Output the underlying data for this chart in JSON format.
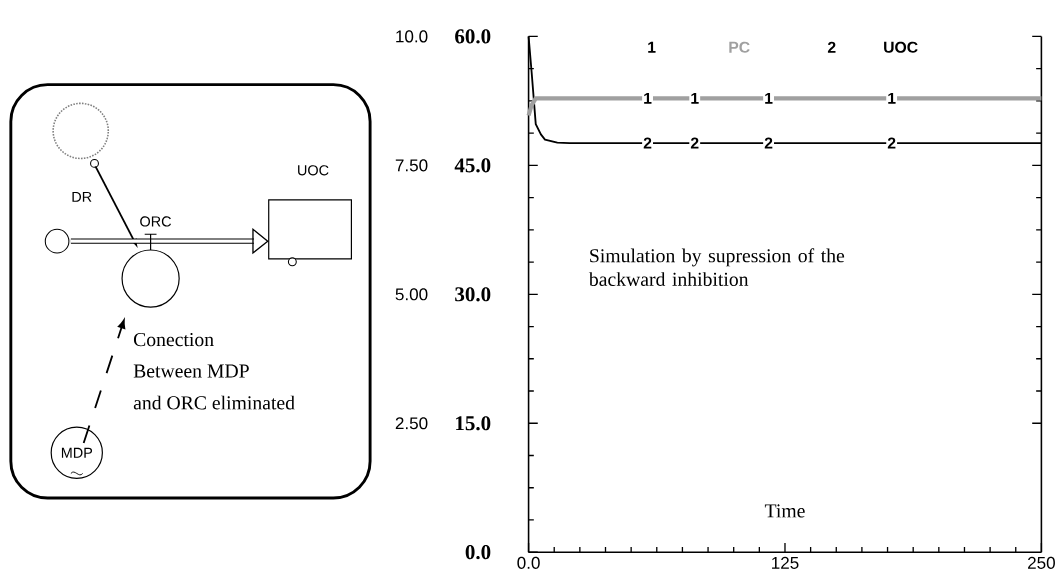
{
  "chart_data": {
    "type": "line",
    "x": [
      0,
      1.5,
      3.5,
      6,
      8,
      14,
      20,
      250
    ],
    "series": [
      {
        "name": "PC",
        "color": "#a0a0a0",
        "values": [
          50.8,
          52.0,
          52.8,
          52.8,
          52.8,
          52.8,
          52.8,
          52.8
        ]
      },
      {
        "name": "UOC",
        "color": "#000000",
        "axis": "y2",
        "values": [
          10.0,
          9.3,
          8.3,
          8.1,
          8.0,
          7.94,
          7.93,
          7.93
        ]
      }
    ],
    "xlabel": "Time",
    "xlim": [
      0,
      250
    ],
    "xticks": [
      {
        "value": 0,
        "label": "0.0"
      },
      125,
      250
    ],
    "ylim": [
      0,
      60
    ],
    "yticks": [
      {
        "value": 0,
        "label": "0.0"
      },
      {
        "value": 15,
        "label": "15.0"
      },
      {
        "value": 30,
        "label": "30.0"
      },
      {
        "value": 45,
        "label": "45.0"
      },
      {
        "value": 60,
        "label": "60.0"
      }
    ],
    "y2lim": [
      0,
      10
    ],
    "y2ticks": [
      {
        "value": 2.5,
        "label": "2.50"
      },
      {
        "value": 5,
        "label": "5.00"
      },
      {
        "value": 7.5,
        "label": "7.50"
      },
      {
        "value": 10,
        "label": "10.0"
      }
    ],
    "legend": "top",
    "grid": false,
    "annotations": [
      "1",
      "2",
      "Simulation by supression of the backward inhibition",
      "DR",
      "ORC",
      "UOC",
      "MDP",
      "Conection",
      "Between MDP",
      "and ORC eliminated",
      {
        "text": "1",
        "x": 58,
        "y": 52.8
      },
      {
        "text": "1",
        "x": 81,
        "y": 52.8
      },
      {
        "text": "1",
        "x": 117,
        "y": 52.8
      },
      {
        "text": "1",
        "x": 177,
        "y": 52.8
      },
      {
        "text": "2",
        "x": 58,
        "y": 47.6
      },
      {
        "text": "2",
        "x": 81,
        "y": 47.6
      },
      {
        "text": "2",
        "x": 117,
        "y": 47.6
      },
      {
        "text": "2",
        "x": 177,
        "y": 47.6
      }
    ]
  }
}
